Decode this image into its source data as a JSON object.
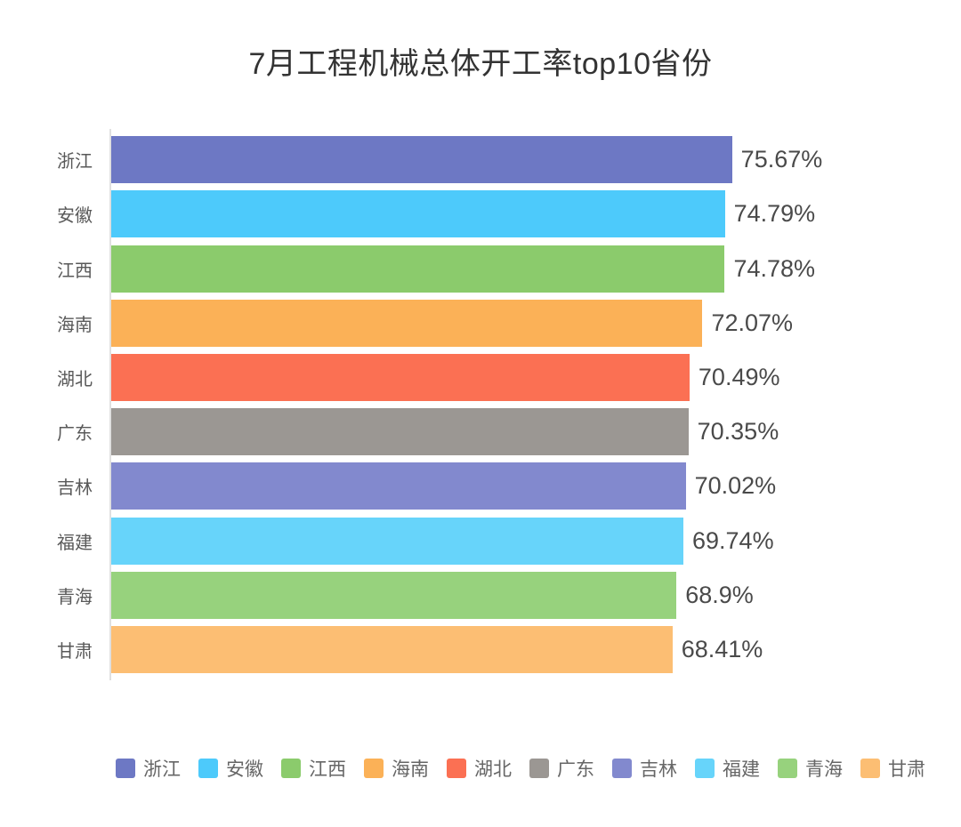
{
  "page": {
    "background_color": "#ffffff"
  },
  "chart_data": {
    "type": "bar",
    "orientation": "horizontal",
    "title": "7月工程机械总体开工率top10省份",
    "xlabel": "",
    "ylabel": "",
    "unit": "%",
    "xlim": [
      0,
      100
    ],
    "grid": false,
    "legend_position": "bottom",
    "categories": [
      "浙江",
      "安徽",
      "江西",
      "海南",
      "湖北",
      "广东",
      "吉林",
      "福建",
      "青海",
      "甘肃"
    ],
    "values": [
      75.67,
      74.79,
      74.78,
      72.07,
      70.49,
      70.35,
      70.02,
      69.74,
      68.9,
      68.41
    ],
    "value_labels": [
      "75.67%",
      "74.79%",
      "74.78%",
      "72.07%",
      "70.49%",
      "70.35%",
      "70.02%",
      "69.74%",
      "68.9%",
      "68.41%"
    ],
    "colors": [
      "#6D78C4",
      "#4DCAFB",
      "#8BCB6C",
      "#FBB157",
      "#FB7053",
      "#9B9793",
      "#8289CE",
      "#67D4FA",
      "#97D27D",
      "#FCBE73"
    ]
  },
  "styles": {
    "axis_color": "#e0e0e0",
    "title_color": "#333333",
    "category_label_color": "#595959",
    "value_label_color": "#4a4a4a",
    "legend_text_color": "#666666"
  }
}
